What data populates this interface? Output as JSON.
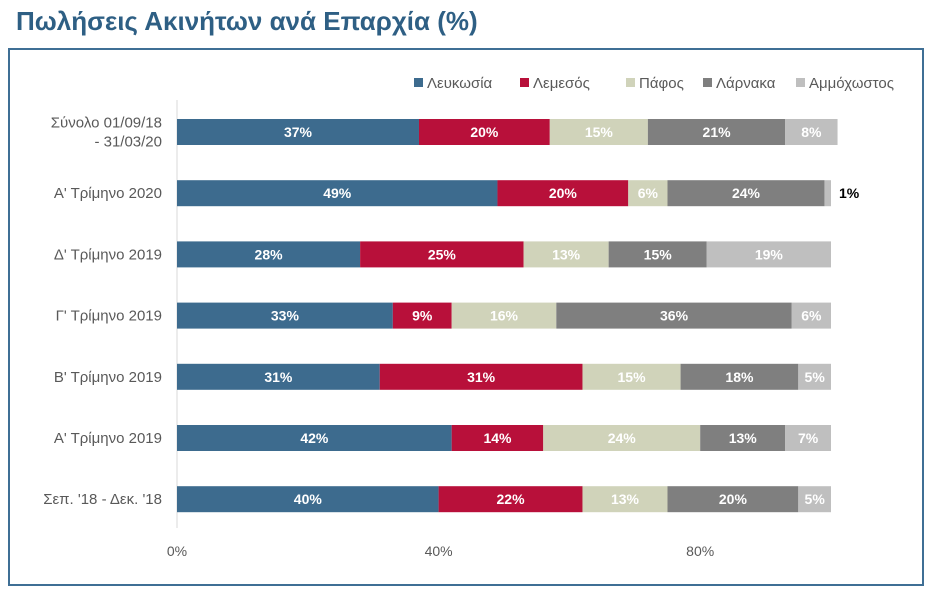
{
  "title": "Πωλήσεις Ακινήτων ανά Επαρχία (%)",
  "chart_data": {
    "type": "bar",
    "orientation": "horizontal",
    "stacked": true,
    "title": "Πωλήσεις Ακινήτων ανά Επαρχία (%)",
    "xlabel": "",
    "ylabel": "",
    "xlim": [
      0,
      100
    ],
    "x_ticks": [
      "0%",
      "40%",
      "80%"
    ],
    "x_tick_values": [
      0,
      40,
      80
    ],
    "grid": false,
    "legend_position": "top-right",
    "categories": [
      "Σύνολο 01/09/18 - 31/03/20",
      "Α' Τρίμηνο 2020",
      "Δ' Τρίμηνο 2019",
      "Γ' Τρίμηνο 2019",
      "Β' Τρίμηνο 2019",
      "Α' Τρίμηνο 2019",
      "Σεπ. '18 - Δεκ. '18"
    ],
    "category_lines": [
      [
        "Σύνολο 01/09/18",
        "- 31/03/20"
      ],
      [
        "Α' Τρίμηνο 2020"
      ],
      [
        "Δ' Τρίμηνο 2019"
      ],
      [
        "Γ' Τρίμηνο 2019"
      ],
      [
        "Β' Τρίμηνο 2019"
      ],
      [
        "Α' Τρίμηνο 2019"
      ],
      [
        "Σεπ. '18 - Δεκ. '18"
      ]
    ],
    "series": [
      {
        "name": "Λευκωσία",
        "color": "#3d6b8e",
        "label_color": "#ffffff",
        "values": [
          37,
          49,
          28,
          33,
          31,
          42,
          40
        ]
      },
      {
        "name": "Λεμεσός",
        "color": "#b8103a",
        "label_color": "#ffffff",
        "values": [
          20,
          20,
          25,
          9,
          31,
          14,
          22
        ]
      },
      {
        "name": "Πάφος",
        "color": "#d0d3ba",
        "label_color": "#ffffff",
        "values": [
          15,
          6,
          13,
          16,
          15,
          24,
          13
        ]
      },
      {
        "name": "Λάρνακα",
        "color": "#7f7f7f",
        "label_color": "#ffffff",
        "values": [
          21,
          24,
          15,
          36,
          18,
          13,
          20
        ]
      },
      {
        "name": "Αμμόχωστος",
        "color": "#bfbfbf",
        "label_color": "#ffffff",
        "values": [
          8,
          1,
          19,
          6,
          5,
          7,
          5
        ]
      }
    ],
    "value_suffix": "%",
    "outside_labels": [
      {
        "category_index": 1,
        "series_index": 4,
        "text": "1%"
      }
    ]
  }
}
